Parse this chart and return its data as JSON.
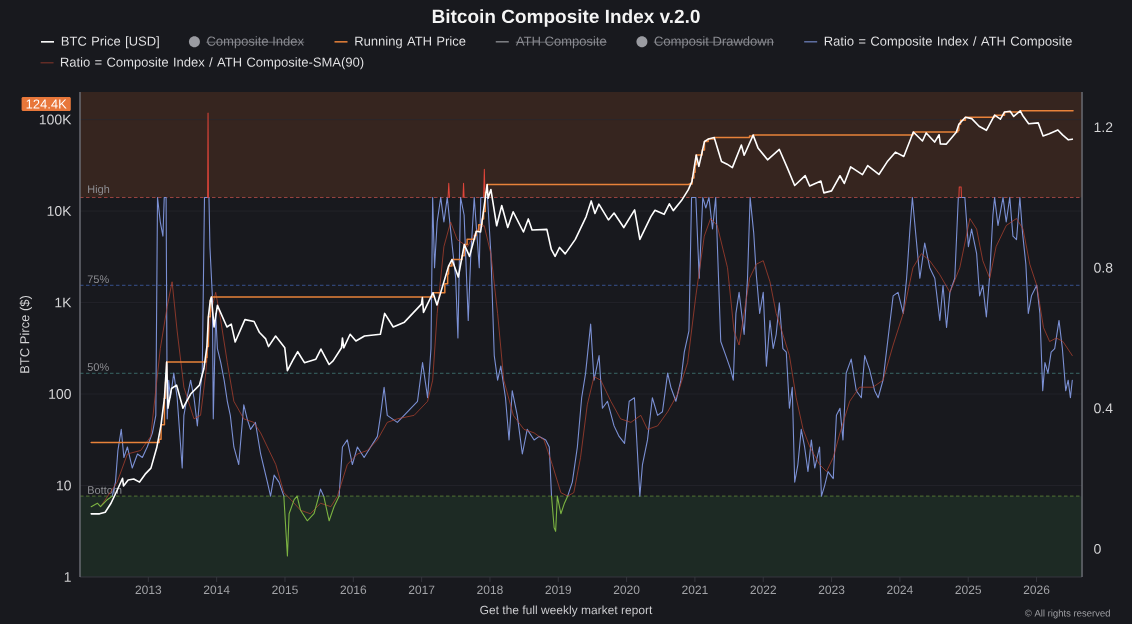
{
  "chart_data": {
    "type": "line",
    "title": "Bitcoin Composite Index v.2.0",
    "ylabel": "BTC Pirce ($)",
    "annotations": [
      "124.4K",
      "Get the full weekly market report",
      "© All rights reserved"
    ],
    "xlim": [
      "2012-01-01",
      "2026-09-01"
    ],
    "xticks": [
      "2013",
      "2014",
      "2015",
      "2016",
      "2017",
      "2018",
      "2019",
      "2020",
      "2021",
      "2022",
      "2023",
      "2024",
      "2025",
      "2026"
    ],
    "ylim": [
      1,
      200000
    ],
    "yticks": [
      1,
      10,
      100,
      {
        "value": 1000,
        "label": "1K"
      },
      {
        "value": 10000,
        "label": "10K"
      },
      {
        "value": 100000,
        "label": "100K"
      }
    ],
    "log": "y",
    "y2lim": [
      -0.08,
      1.3
    ],
    "y2ticks": [
      0,
      0.4,
      0.8,
      1.2
    ],
    "grid": "y",
    "legend": "top",
    "bands": [
      {
        "axis": "y2",
        "from": 1.0,
        "to": 1.3,
        "color": "#36251f"
      },
      {
        "axis": "y2",
        "from": -0.08,
        "to": 0.15,
        "color": "#1d2a24"
      }
    ],
    "ref_lines": [
      {
        "axis": "y2",
        "value": 1.0,
        "label": "High",
        "color": "#c0504d",
        "line_style": "dashed"
      },
      {
        "axis": "y2",
        "value": 0.75,
        "label": "75%",
        "color": "#3f5fa8",
        "line_style": "dashed"
      },
      {
        "axis": "y2",
        "value": 0.5,
        "label": "50%",
        "color": "#4b8f8c",
        "line_style": "dashed"
      },
      {
        "axis": "y2",
        "value": 0.15,
        "label": "Bottom",
        "color": "#6f9f3f",
        "line_style": "dashed"
      }
    ],
    "series": [
      {
        "name": "BTC Price [USD]",
        "color": "#ffffff",
        "x": [
          "2012-03-01",
          "2012-04-15",
          "2012-05-15",
          "2012-06-15",
          "2012-07-15",
          "2012-08-16",
          "2012-08-21",
          "2012-09-15",
          "2012-10-15",
          "2012-11-15",
          "2012-12-15",
          "2013-01-15",
          "2013-02-15",
          "2013-03-10",
          "2013-03-28",
          "2013-04-09",
          "2013-04-16",
          "2013-05-05",
          "2013-06-01",
          "2013-07-05",
          "2013-08-15",
          "2013-10-01",
          "2013-10-25",
          "2013-11-10",
          "2013-11-18",
          "2013-11-28",
          "2013-12-04",
          "2013-12-18",
          "2014-01-05",
          "2014-02-25",
          "2014-03-20",
          "2014-04-10",
          "2014-06-01",
          "2014-07-20",
          "2014-08-18",
          "2014-09-20",
          "2014-10-05",
          "2014-11-12",
          "2014-12-31",
          "2015-01-14",
          "2015-02-15",
          "2015-03-10",
          "2015-04-15",
          "2015-06-15",
          "2015-07-12",
          "2015-08-25",
          "2015-09-15",
          "2015-10-30",
          "2015-11-04",
          "2015-11-11",
          "2015-12-15",
          "2016-01-15",
          "2016-03-01",
          "2016-05-25",
          "2016-06-17",
          "2016-08-02",
          "2016-10-01",
          "2016-12-31",
          "2017-01-05",
          "2017-01-11",
          "2017-03-03",
          "2017-03-24",
          "2017-05-25",
          "2017-06-12",
          "2017-07-16",
          "2017-08-17",
          "2017-09-14",
          "2017-10-20",
          "2017-11-12",
          "2017-12-17",
          "2017-12-22",
          "2018-01-06",
          "2018-02-06",
          "2018-03-05",
          "2018-04-06",
          "2018-05-05",
          "2018-06-29",
          "2018-07-25",
          "2018-08-14",
          "2018-11-01",
          "2018-11-25",
          "2018-12-15",
          "2019-01-08",
          "2019-02-07",
          "2019-04-02",
          "2019-05-30",
          "2019-06-26",
          "2019-07-16",
          "2019-08-06",
          "2019-09-26",
          "2019-10-26",
          "2019-12-17",
          "2020-02-13",
          "2020-03-12",
          "2020-05-10",
          "2020-06-01",
          "2020-07-20",
          "2020-08-17",
          "2020-09-07",
          "2020-10-21",
          "2020-11-26",
          "2020-12-16",
          "2021-01-08",
          "2021-01-22",
          "2021-02-21",
          "2021-03-13",
          "2021-04-14",
          "2021-05-23",
          "2021-06-22",
          "2021-07-20",
          "2021-09-06",
          "2021-09-21",
          "2021-11-08",
          "2021-12-04",
          "2022-01-24",
          "2022-03-28",
          "2022-05-12",
          "2022-06-18",
          "2022-08-13",
          "2022-09-06",
          "2022-11-05",
          "2022-11-21",
          "2023-01-01",
          "2023-02-15",
          "2023-03-10",
          "2023-04-13",
          "2023-06-15",
          "2023-07-13",
          "2023-09-11",
          "2023-10-25",
          "2023-12-08",
          "2024-01-22",
          "2024-03-13",
          "2024-05-01",
          "2024-05-21",
          "2024-07-05",
          "2024-07-29",
          "2024-08-05",
          "2024-09-06",
          "2024-10-29",
          "2024-11-12",
          "2024-12-17",
          "2025-01-20",
          "2025-02-28",
          "2025-04-08",
          "2025-05-22",
          "2025-06-22",
          "2025-07-14",
          "2025-08-13",
          "2025-09-01",
          "2025-10-06",
          "2025-10-20",
          "2025-11-20",
          "2026-01-10",
          "2026-02-05",
          "2026-03-10",
          "2026-04-25",
          "2026-05-20",
          "2026-06-20",
          "2026-07-11"
        ],
        "values": [
          4.9,
          4.9,
          5.1,
          6.4,
          8.6,
          12,
          9.9,
          11.5,
          11.8,
          10.9,
          13.3,
          15.5,
          26,
          46,
          90,
          224,
          70,
          115,
          125,
          70,
          100,
          125,
          190,
          330,
          700,
          1050,
          1150,
          540,
          930,
          540,
          580,
          370,
          650,
          620,
          470,
          400,
          330,
          430,
          320,
          180,
          240,
          290,
          220,
          240,
          310,
          210,
          230,
          320,
          410,
          320,
          450,
          380,
          430,
          450,
          760,
          540,
          610,
          960,
          1130,
          780,
          1280,
          940,
          2500,
          2950,
          1900,
          4300,
          3200,
          6000,
          5900,
          19500,
          13800,
          17200,
          6900,
          11500,
          6600,
          9800,
          5900,
          8200,
          6200,
          6300,
          3800,
          3200,
          4000,
          3400,
          4900,
          8700,
          12900,
          9400,
          11900,
          8000,
          9500,
          6600,
          10300,
          4900,
          8700,
          10200,
          9200,
          12000,
          10100,
          13000,
          17000,
          21000,
          41000,
          30800,
          57500,
          61200,
          63500,
          34700,
          32500,
          29800,
          52700,
          40700,
          67600,
          49000,
          36300,
          47100,
          28900,
          19000,
          24400,
          18800,
          21300,
          15800,
          16600,
          24300,
          20000,
          30400,
          25000,
          31400,
          25100,
          34500,
          44000,
          39500,
          73100,
          58300,
          71400,
          56700,
          68200,
          54000,
          53900,
          72700,
          88700,
          106100,
          102300,
          84400,
          76300,
          111700,
          100900,
          121000,
          123300,
          108000,
          124400,
          110000,
          90000,
          92000,
          66000,
          70000,
          77000,
          68000,
          60000,
          61000
        ]
      },
      {
        "name": "Composite Index",
        "color": "#9a9ba1",
        "marker": "circle"
      },
      {
        "name": "Running ATH Price",
        "type": "step",
        "color": "#e8823a",
        "x": [
          "2012-03-01",
          "2013-02-28",
          "2013-03-10",
          "2013-03-28",
          "2013-04-03",
          "2013-04-09",
          "2013-11-05",
          "2013-11-10",
          "2013-11-18",
          "2013-11-28",
          "2013-12-04",
          "2017-03-03",
          "2017-05-05",
          "2017-05-20",
          "2017-05-25",
          "2017-06-12",
          "2017-08-05",
          "2017-08-17",
          "2017-09-01",
          "2017-10-12",
          "2017-10-20",
          "2017-11-02",
          "2017-11-20",
          "2017-11-28",
          "2017-12-07",
          "2017-12-17",
          "2020-12-01",
          "2020-12-17",
          "2020-12-27",
          "2021-01-02",
          "2021-01-08",
          "2021-02-09",
          "2021-02-21",
          "2021-03-13",
          "2021-04-14",
          "2021-10-20",
          "2021-11-08",
          "2024-03-05",
          "2024-03-13",
          "2024-11-06",
          "2024-11-12",
          "2024-11-21",
          "2024-12-17",
          "2025-05-22",
          "2025-07-14",
          "2025-10-06",
          "2026-07-15"
        ],
        "values": [
          29.6,
          32,
          46,
          90,
          135,
          224,
          250,
          330,
          700,
          1050,
          1150,
          1280,
          1600,
          2050,
          2500,
          2950,
          3250,
          4300,
          4900,
          5400,
          6000,
          7100,
          8200,
          9900,
          16000,
          19500,
          19700,
          23000,
          26500,
          32000,
          41000,
          46500,
          57500,
          61200,
          63500,
          66000,
          67600,
          68300,
          73100,
          76000,
          88700,
          98000,
          106100,
          111700,
          121000,
          124400,
          124400
        ]
      },
      {
        "name": "ATH Composite",
        "color": "#9a9ba1"
      },
      {
        "name": "Composit Drawdown",
        "color": "#9a9ba1",
        "marker": "circle"
      },
      {
        "name": "Ratio = Composite Index / ATH Composite",
        "color": "#7b90d4",
        "axis": "y2",
        "x": [
          "2012-06-22",
          "2012-07-09",
          "2012-07-22",
          "2012-08-09",
          "2012-08-23",
          "2012-09-11",
          "2012-10-07",
          "2012-11-04",
          "2012-11-30",
          "2012-12-26",
          "2013-01-23",
          "2013-02-10",
          "2013-02-19",
          "2013-03-06",
          "2013-03-20",
          "2013-03-27",
          "2013-04-06",
          "2013-04-12",
          "2013-04-20",
          "2013-04-29",
          "2013-05-17",
          "2013-06-04",
          "2013-07-01",
          "2013-07-10",
          "2013-07-27",
          "2013-08-15",
          "2013-09-02",
          "2013-09-20",
          "2013-10-07",
          "2013-10-16",
          "2013-10-28",
          "2013-11-12",
          "2013-11-21",
          "2013-11-26",
          "2013-12-09",
          "2013-12-14",
          "2013-12-27",
          "2014-01-05",
          "2014-01-23",
          "2014-02-10",
          "2014-02-27",
          "2014-03-15",
          "2014-04-03",
          "2014-04-29",
          "2014-05-26",
          "2014-06-13",
          "2014-07-01",
          "2014-07-27",
          "2014-08-24",
          "2014-09-29",
          "2014-10-16",
          "2014-11-04",
          "2014-11-30",
          "2014-12-26",
          "2015-01-14",
          "2015-07-01",
          "2015-07-10",
          "2015-07-27",
          "2015-08-25",
          "2015-10-17",
          "2015-11-04",
          "2015-11-30",
          "2015-12-27",
          "2016-01-23",
          "2016-02-28",
          "2016-04-03",
          "2016-05-09",
          "2016-05-26",
          "2016-06-14",
          "2016-07-01",
          "2016-07-28",
          "2016-08-24",
          "2016-09-11",
          "2016-11-04",
          "2016-12-10",
          "2017-01-06",
          "2017-02-02",
          "2017-02-20",
          "2017-03-01",
          "2017-03-11",
          "2017-03-25",
          "2017-04-13",
          "2017-04-30",
          "2017-05-18",
          "2017-06-14",
          "2017-07-02",
          "2017-07-14",
          "2017-07-28",
          "2017-08-16",
          "2017-09-07",
          "2017-09-21",
          "2017-10-09",
          "2017-11-05",
          "2017-11-13",
          "2017-12-19",
          "2018-01-06",
          "2018-01-24",
          "2018-02-11",
          "2018-02-28",
          "2018-03-25",
          "2018-04-13",
          "2018-04-30",
          "2018-05-27",
          "2018-06-23",
          "2018-07-19",
          "2018-08-25",
          "2018-09-21",
          "2018-10-26",
          "2018-11-14",
          "2018-11-26",
          "2018-12-18",
          "2019-02-20",
          "2019-03-17",
          "2019-04-13",
          "2019-05-06",
          "2019-05-27",
          "2019-06-23",
          "2019-07-11",
          "2019-08-07",
          "2019-08-25",
          "2019-09-21",
          "2019-10-26",
          "2019-11-22",
          "2019-12-21",
          "2020-01-15",
          "2020-02-12",
          "2020-03-12",
          "2020-03-26",
          "2020-04-22",
          "2020-05-18",
          "2020-06-15",
          "2020-07-11",
          "2020-08-08",
          "2020-08-25",
          "2020-09-21",
          "2020-10-18",
          "2020-11-05",
          "2020-11-30",
          "2020-12-14",
          "2021-01-06",
          "2021-01-24",
          "2021-02-12",
          "2021-02-28",
          "2021-03-17",
          "2021-04-05",
          "2021-04-22",
          "2021-05-19",
          "2021-06-15",
          "2021-07-11",
          "2021-07-25",
          "2021-08-08",
          "2021-08-25",
          "2021-09-21",
          "2021-10-09",
          "2021-10-23",
          "2021-11-11",
          "2021-11-25",
          "2021-12-13",
          "2022-01-01",
          "2022-01-18",
          "2022-02-06",
          "2022-02-23",
          "2022-03-11",
          "2022-03-28",
          "2022-04-16",
          "2022-05-04",
          "2022-05-21",
          "2022-06-05",
          "2022-06-18",
          "2022-07-05",
          "2022-07-23",
          "2022-08-10",
          "2022-08-28",
          "2022-09-15",
          "2022-10-03",
          "2022-10-29",
          "2022-11-08",
          "2022-11-25",
          "2022-12-13",
          "2023-01-10",
          "2023-01-27",
          "2023-02-15",
          "2023-03-03",
          "2023-03-20",
          "2023-04-16",
          "2023-05-13",
          "2023-06-09",
          "2023-06-27",
          "2023-07-23",
          "2023-08-19",
          "2023-09-07",
          "2023-10-03",
          "2023-10-30",
          "2023-11-26",
          "2023-12-22",
          "2024-01-19",
          "2024-02-06",
          "2024-02-24",
          "2024-03-08",
          "2024-03-20",
          "2024-04-17",
          "2024-05-13",
          "2024-06-09",
          "2024-07-06",
          "2024-08-02",
          "2024-08-19",
          "2024-09-07",
          "2024-09-25",
          "2024-10-21",
          "2024-11-09",
          "2024-12-14",
          "2025-01-02",
          "2025-01-19",
          "2025-02-15",
          "2025-03-03",
          "2025-03-20",
          "2025-04-08",
          "2025-04-26",
          "2025-05-13",
          "2025-05-22",
          "2025-06-09",
          "2025-07-06",
          "2025-07-23",
          "2025-08-11",
          "2025-08-28",
          "2025-09-16",
          "2025-10-04",
          "2025-10-18",
          "2025-11-05",
          "2025-11-18",
          "2025-12-05",
          "2026-01-02",
          "2026-01-19",
          "2026-02-03",
          "2026-02-15",
          "2026-03-03",
          "2026-03-20",
          "2026-04-08",
          "2026-05-01",
          "2026-05-19",
          "2026-06-06",
          "2026-06-19",
          "2026-07-01",
          "2026-07-11"
        ],
        "values": [
          0.15,
          0.19,
          0.28,
          0.34,
          0.26,
          0.29,
          0.23,
          0.27,
          0.26,
          0.29,
          0.33,
          0.38,
          1.0,
          0.93,
          0.89,
          1.0,
          1.0,
          0.37,
          0.48,
          0.43,
          0.5,
          0.43,
          0.23,
          0.38,
          0.43,
          0.48,
          0.43,
          0.35,
          0.46,
          0.5,
          1.0,
          1.0,
          1.0,
          0.86,
          0.72,
          0.37,
          0.67,
          0.57,
          0.53,
          0.48,
          0.42,
          0.38,
          0.29,
          0.24,
          0.41,
          0.37,
          0.34,
          0.36,
          0.27,
          0.19,
          0.15,
          0.21,
          0.19,
          0.15,
          null,
          0.15,
          0.17,
          0.15,
          null,
          0.15,
          0.29,
          0.31,
          0.24,
          0.29,
          0.26,
          0.29,
          0.32,
          0.38,
          0.46,
          0.38,
          0.37,
          0.36,
          0.37,
          0.4,
          0.42,
          0.53,
          0.43,
          0.57,
          1.0,
          0.8,
          0.93,
          1.0,
          0.93,
          1.0,
          0.86,
          0.77,
          0.6,
          1.0,
          0.95,
          0.65,
          0.84,
          1.0,
          0.8,
          1.0,
          1.0,
          0.84,
          0.55,
          0.48,
          0.52,
          0.43,
          0.31,
          0.45,
          0.38,
          0.27,
          0.34,
          0.31,
          0.32,
          0.31,
          0.29,
          0.15,
          null,
          0.15,
          0.19,
          0.29,
          0.43,
          0.5,
          0.64,
          0.48,
          0.55,
          0.4,
          0.42,
          0.35,
          0.32,
          0.3,
          0.42,
          0.43,
          0.15,
          0.24,
          0.31,
          0.43,
          0.38,
          0.39,
          0.5,
          0.46,
          0.42,
          0.48,
          0.56,
          0.62,
          1.0,
          1.0,
          0.77,
          1.0,
          0.97,
          1.0,
          0.91,
          1.0,
          0.59,
          0.55,
          0.51,
          0.48,
          0.67,
          0.73,
          0.61,
          0.77,
          1.0,
          0.9,
          0.78,
          0.67,
          0.73,
          0.52,
          0.65,
          0.57,
          0.61,
          0.7,
          0.57,
          0.56,
          0.4,
          0.46,
          0.19,
          0.24,
          0.34,
          0.29,
          0.22,
          0.31,
          0.23,
          0.29,
          0.15,
          0.18,
          0.22,
          0.2,
          0.38,
          0.4,
          0.31,
          0.5,
          0.54,
          0.45,
          0.43,
          0.55,
          0.51,
          0.45,
          0.43,
          0.48,
          0.6,
          0.72,
          0.73,
          0.67,
          0.77,
          0.91,
          1.0,
          0.93,
          0.77,
          0.87,
          0.8,
          0.77,
          0.65,
          0.75,
          0.63,
          0.73,
          0.77,
          1.0,
          1.0,
          0.86,
          0.91,
          0.84,
          0.72,
          0.75,
          0.66,
          0.78,
          0.95,
          1.0,
          0.92,
          1.0,
          0.93,
          1.0,
          0.89,
          0.88,
          1.0,
          0.9,
          0.81,
          0.67,
          0.72,
          0.75,
          0.67,
          0.45,
          0.53,
          0.5,
          0.56,
          0.57,
          0.65,
          0.57,
          0.45,
          0.48,
          0.43,
          0.48
        ]
      },
      {
        "name": "Ratio = Composite Index / ATH Composite-SMA(90)",
        "color": "#b8432f",
        "axis": "y2",
        "x": [
          "2012-04-20",
          "2012-07-18",
          "2012-09-11",
          "2012-11-21",
          "2013-01-14",
          "2013-03-06",
          "2013-04-12",
          "2013-05-08",
          "2013-06-04",
          "2013-07-10",
          "2013-09-02",
          "2013-10-07",
          "2013-11-04",
          "2013-11-30",
          "2013-12-27",
          "2014-01-23",
          "2014-02-27",
          "2014-04-03",
          "2014-05-26",
          "2014-07-18",
          "2014-08-24",
          "2014-09-29",
          "2014-11-13",
          "2014-12-26",
          "2015-02-02",
          "2015-03-25",
          "2015-05-17",
          "2015-07-10",
          "2015-09-03",
          "2015-10-08",
          "2015-11-30",
          "2016-01-23",
          "2016-03-16",
          "2016-05-09",
          "2016-07-01",
          "2016-08-24",
          "2016-11-22",
          "2017-02-02",
          "2017-03-01",
          "2017-03-25",
          "2017-04-30",
          "2017-06-05",
          "2017-07-10",
          "2017-09-03",
          "2017-10-26",
          "2017-12-01",
          "2018-01-06",
          "2018-02-11",
          "2018-03-16",
          "2018-05-06",
          "2018-07-02",
          "2018-08-25",
          "2018-10-17",
          "2018-11-30",
          "2019-01-15",
          "2019-02-20",
          "2019-03-25",
          "2019-04-30",
          "2019-06-05",
          "2019-07-11",
          "2019-08-16",
          "2019-10-09",
          "2019-11-30",
          "2020-01-24",
          "2020-03-17",
          "2020-04-22",
          "2020-06-15",
          "2020-08-08",
          "2020-09-30",
          "2020-11-23",
          "2021-01-06",
          "2021-02-20",
          "2021-03-26",
          "2021-04-30",
          "2021-06-24",
          "2021-07-29",
          "2021-08-25",
          "2021-10-20",
          "2021-11-25",
          "2022-01-01",
          "2022-02-06",
          "2022-03-11",
          "2022-04-16",
          "2022-05-21",
          "2022-06-26",
          "2022-08-02",
          "2022-09-07",
          "2022-10-29",
          "2022-12-05",
          "2023-01-10",
          "2023-02-15",
          "2023-04-08",
          "2023-05-30",
          "2023-08-10",
          "2023-10-03",
          "2023-11-26",
          "2024-01-19",
          "2024-03-11",
          "2024-04-25",
          "2024-06-09",
          "2024-08-02",
          "2024-09-25",
          "2024-11-17",
          "2025-01-10",
          "2025-02-15",
          "2025-03-20",
          "2025-04-26",
          "2025-05-30",
          "2025-07-23",
          "2025-09-16",
          "2025-10-21",
          "2025-11-26",
          "2026-01-02",
          "2026-02-07",
          "2026-03-12",
          "2026-04-17",
          "2026-05-22",
          "2026-07-11"
        ],
        "values": [
          0.12,
          0.19,
          0.27,
          0.28,
          0.32,
          0.57,
          0.69,
          0.76,
          0.62,
          0.46,
          0.37,
          0.38,
          0.5,
          0.67,
          0.73,
          0.65,
          0.53,
          0.42,
          0.37,
          0.36,
          0.33,
          0.29,
          0.24,
          0.16,
          0.14,
          0.11,
          0.1,
          0.13,
          0.12,
          0.15,
          0.24,
          0.27,
          0.28,
          0.31,
          0.36,
          0.37,
          0.38,
          0.42,
          0.48,
          0.67,
          0.86,
          0.93,
          0.88,
          0.86,
          0.91,
          0.92,
          0.84,
          0.67,
          0.48,
          0.38,
          0.34,
          0.33,
          0.31,
          0.24,
          0.16,
          0.15,
          0.16,
          0.26,
          0.41,
          0.49,
          0.48,
          0.42,
          0.37,
          0.36,
          0.38,
          0.34,
          0.35,
          0.39,
          0.44,
          0.53,
          0.72,
          0.89,
          0.94,
          0.92,
          0.8,
          0.62,
          0.58,
          0.77,
          0.81,
          0.82,
          0.76,
          0.67,
          0.61,
          0.55,
          0.43,
          0.34,
          0.29,
          0.24,
          0.22,
          0.26,
          0.33,
          0.42,
          0.46,
          0.46,
          0.48,
          0.58,
          0.67,
          0.8,
          0.84,
          0.82,
          0.78,
          0.73,
          0.8,
          0.94,
          0.91,
          0.82,
          0.77,
          0.86,
          0.92,
          0.94,
          0.91,
          0.81,
          0.75,
          0.63,
          0.59,
          0.6,
          0.59,
          0.55
        ]
      },
      {
        "color": "#7cb342",
        "axis": "y2",
        "x": [
          "2012-03-01",
          "2012-04-03",
          "2012-04-20",
          "2012-05-26",
          "2012-06-22",
          "2012-10-01",
          "2014-12-26",
          "2015-01-05",
          "2015-01-14",
          "2015-01-23",
          "2015-02-19",
          "2015-03-07",
          "2015-03-25",
          "2015-04-30",
          "2015-06-05",
          "2015-07-01",
          "2015-07-15",
          "2015-07-27",
          "2015-08-25",
          "2015-09-20",
          "2015-10-17",
          "2016-06-01",
          "2018-11-26",
          "2018-12-10",
          "2018-12-18",
          "2018-12-27",
          "2019-01-15",
          "2019-02-03",
          "2019-02-20"
        ],
        "values": [
          0.12,
          0.13,
          0.12,
          0.14,
          0.15,
          null,
          0.15,
          0.06,
          -0.02,
          0.1,
          0.14,
          0.15,
          0.11,
          0.08,
          0.1,
          0.15,
          null,
          0.15,
          0.08,
          0.12,
          0.15,
          null,
          0.15,
          0.06,
          0.05,
          0.15,
          0.1,
          0.13,
          0.15
        ]
      },
      {
        "color": "#e0453a",
        "axis": "y2",
        "x": [
          "2013-11-14",
          "2013-11-16",
          "2013-11-18",
          "2014-01-01",
          "2017-05-22",
          "2017-05-26",
          "2017-05-30",
          "2017-06-10",
          "2017-08-10",
          "2017-08-13",
          "2017-08-16",
          "2017-09-01",
          "2017-11-28",
          "2017-12-02",
          "2017-12-06",
          "2018-06-01",
          "2024-11-12",
          "2024-11-14",
          "2024-11-24",
          "2024-11-26"
        ],
        "values": [
          1.0,
          1.24,
          1.0,
          null,
          1.0,
          1.04,
          1.0,
          null,
          1.0,
          1.04,
          1.0,
          null,
          1.0,
          1.08,
          1.0,
          null,
          1.0,
          1.03,
          1.03,
          1.0
        ]
      }
    ]
  }
}
